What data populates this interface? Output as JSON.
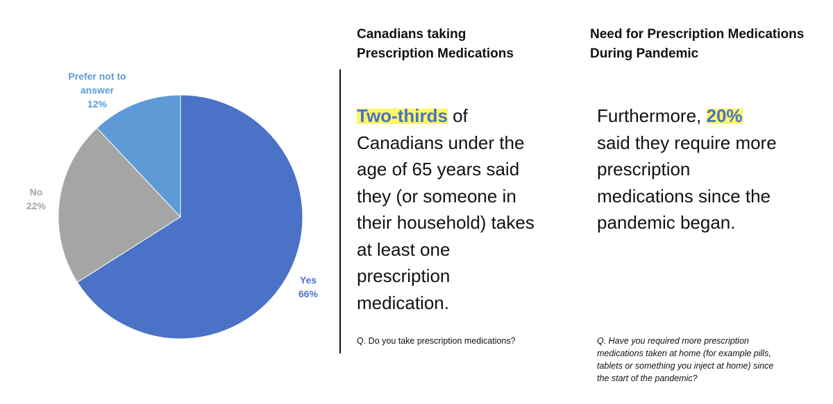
{
  "chart_data": {
    "type": "pie",
    "categories": [
      "Yes",
      "No",
      "Prefer not to answer"
    ],
    "values": [
      66,
      22,
      12
    ],
    "value_labels": [
      "66%",
      "22%",
      "12%"
    ],
    "colors": [
      "#4a72c6",
      "#a5a5a5",
      "#5e9bd6"
    ],
    "label_colors": [
      "#4a72c6",
      "#a5a5a5",
      "#5e9bd6"
    ]
  },
  "panels": [
    {
      "heading": "Canadians taking Prescription Medications",
      "body": [
        {
          "text": "Two-thirds",
          "highlight": true
        },
        {
          "text": " of Canadians under the age of 65 years said they (or someone in their household) takes at least one prescription medication."
        }
      ],
      "question": "Q. Do you take prescription medications?"
    },
    {
      "heading": "Need for Prescription Medications During Pandemic",
      "body": [
        {
          "text": "Furthermore, "
        },
        {
          "text": "20%",
          "highlight": true
        },
        {
          "text": " said they require more prescription medications since the pandemic began."
        }
      ],
      "question": "Q. Have you required more prescription medications taken at home (for example pills, tablets or something you inject at home) since the start of the pandemic?"
    }
  ]
}
